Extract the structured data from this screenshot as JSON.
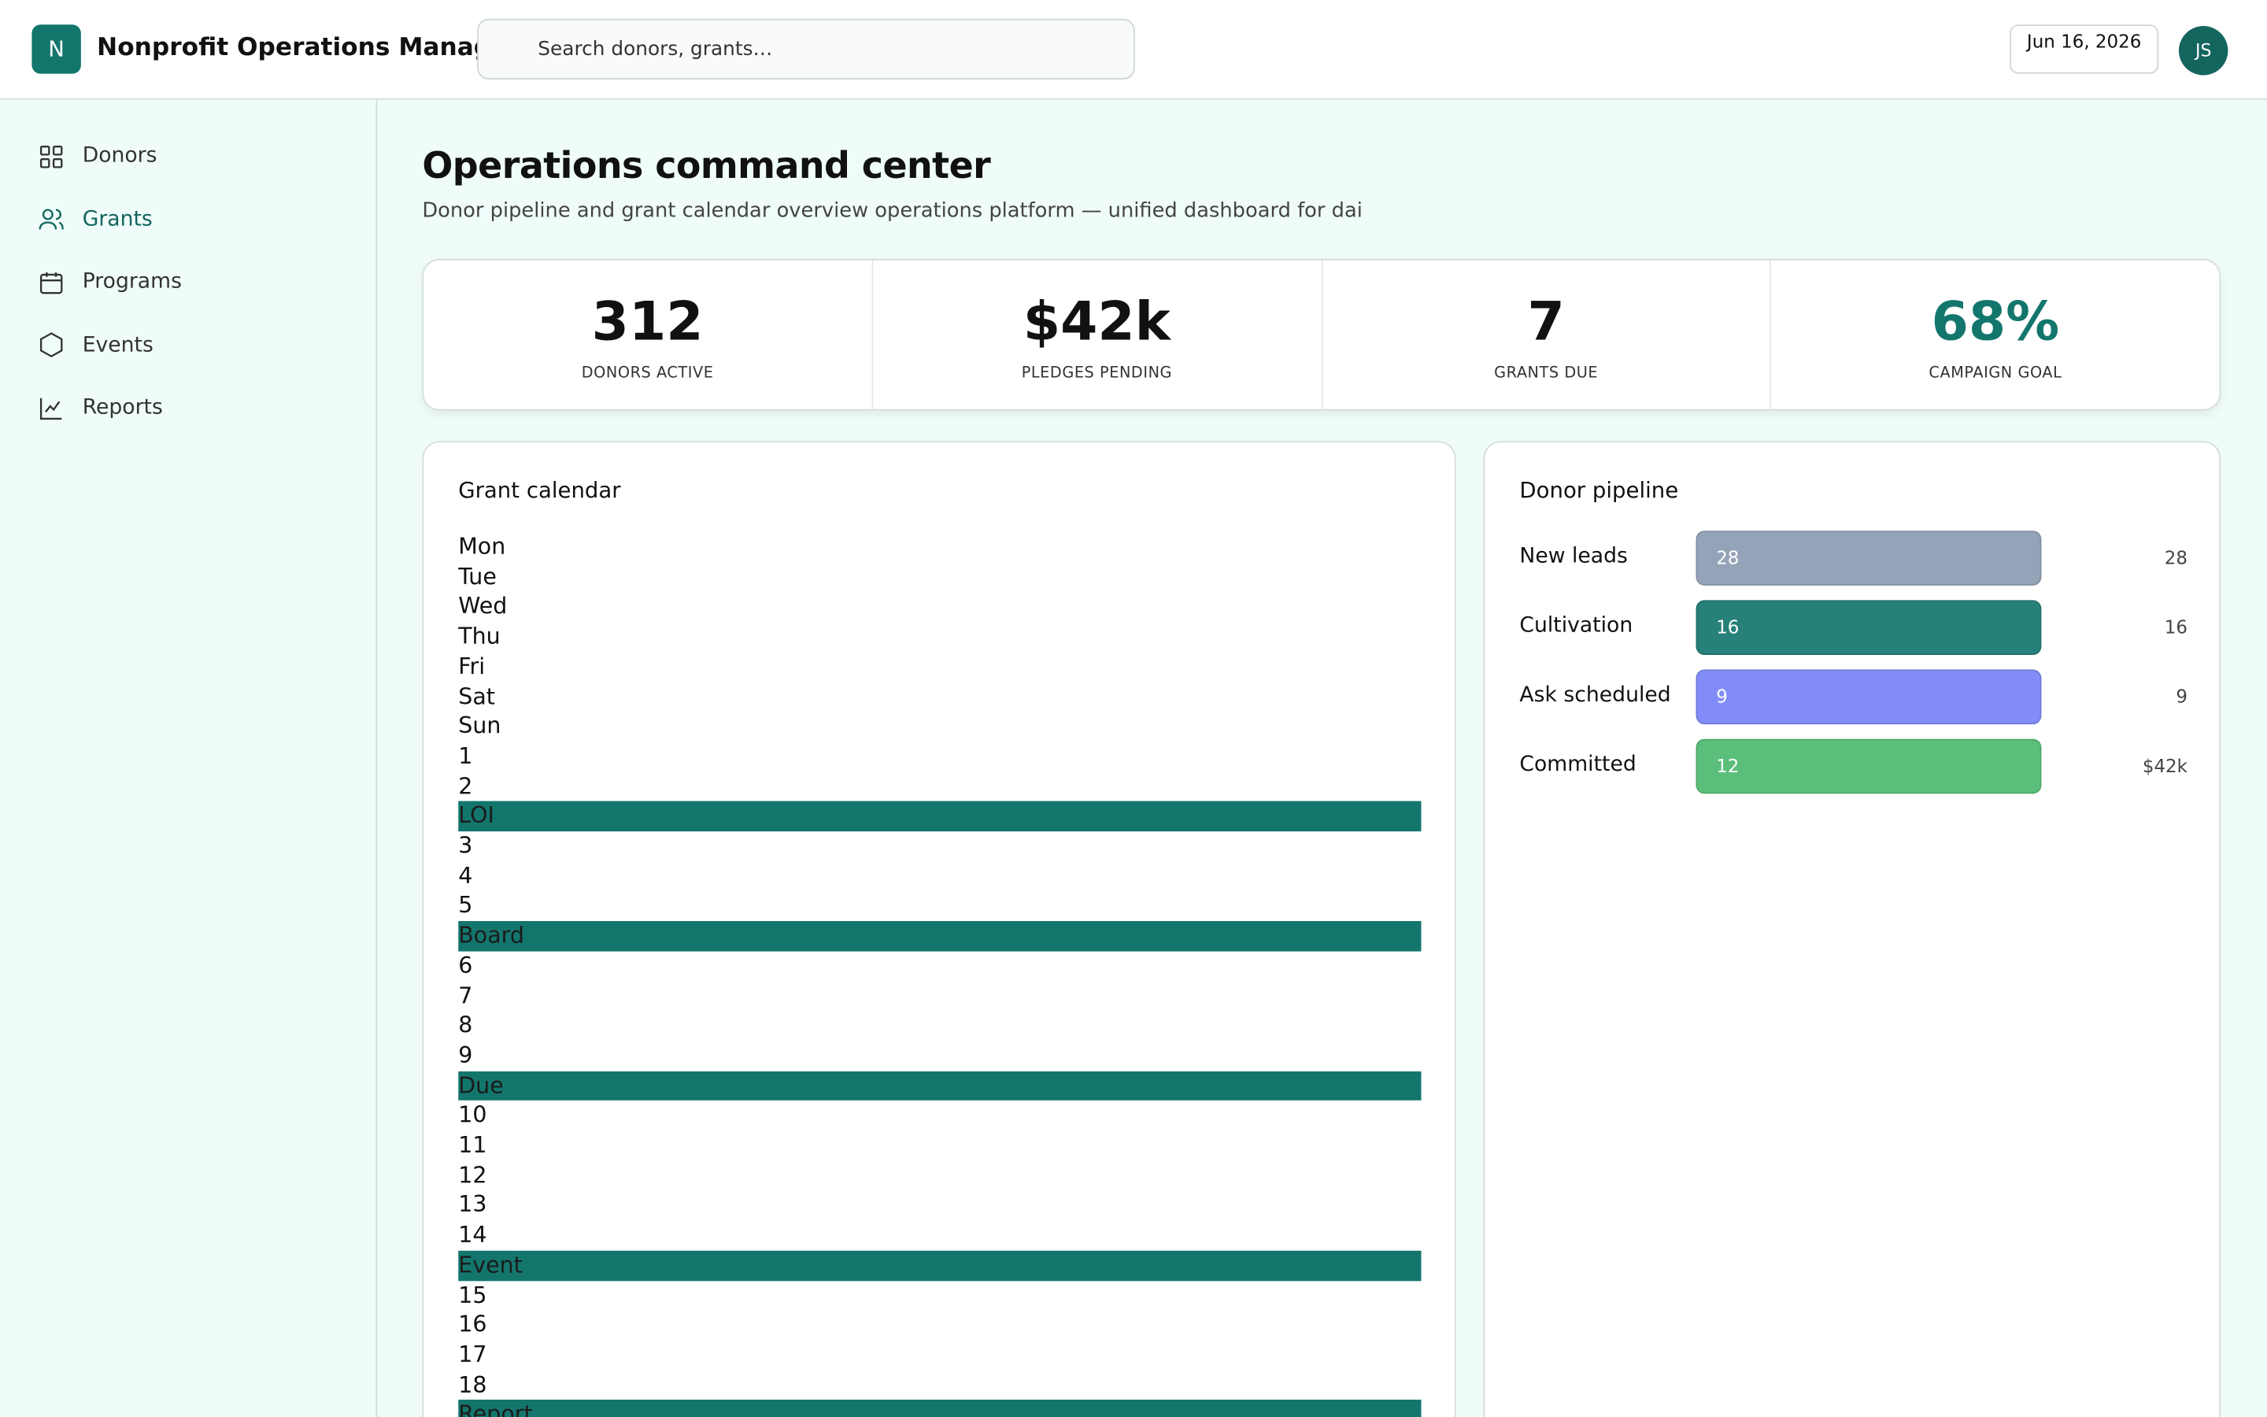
{
  "header": {
    "logo": "N",
    "app_name": "Nonprofit Operations Manager",
    "search_placeholder": "Search donors, grants…",
    "date": "Jun 16, 2026",
    "avatar": "JS"
  },
  "nav": {
    "active": 1,
    "items": [
      "Donors",
      "Grants",
      "Programs",
      "Events",
      "Reports"
    ]
  },
  "page": {
    "title": "Operations command center",
    "subtitle": "Donor pipeline and grant calendar overview operations platform — unified dashboard for dai"
  },
  "kpis": [
    {
      "value": "312",
      "label": "DONORS ACTIVE"
    },
    {
      "value": "$42k",
      "label": "PLEDGES PENDING"
    },
    {
      "value": "7",
      "label": "GRANTS DUE"
    },
    {
      "value": "68%",
      "label": "CAMPAIGN GOAL",
      "accent": true
    }
  ],
  "calendar": {
    "title": "Grant calendar",
    "weekdays": [
      "Mon",
      "Tue",
      "Wed",
      "Thu",
      "Fri",
      "Sat",
      "Sun"
    ],
    "days": [
      {
        "day": "1"
      },
      {
        "day": "2",
        "event": "LOI"
      },
      {
        "day": "3"
      },
      {
        "day": "4"
      },
      {
        "day": "5",
        "event": "Board"
      },
      {
        "day": "6"
      },
      {
        "day": "7"
      },
      {
        "day": "8"
      },
      {
        "day": "9",
        "event": "Due"
      },
      {
        "day": "10"
      },
      {
        "day": "11"
      },
      {
        "day": "12"
      },
      {
        "day": "13"
      },
      {
        "day": "14",
        "event": "Event"
      },
      {
        "day": "15"
      },
      {
        "day": "16"
      },
      {
        "day": "17"
      },
      {
        "day": "18",
        "event": "Report"
      }
    ]
  },
  "pipeline": {
    "title": "Donor pipeline",
    "stages": [
      {
        "name": "New leads",
        "count": 28,
        "side_label": "28",
        "color": "#94a3b8"
      },
      {
        "name": "Cultivation",
        "count": 16,
        "side_label": "16",
        "color": "#27817a"
      },
      {
        "name": "Ask scheduled",
        "count": 9,
        "side_label": "9",
        "color": "#818cf8"
      },
      {
        "name": "Committed",
        "count": 12,
        "side_label": "$42k",
        "color": "#5bbf7b"
      }
    ]
  }
}
